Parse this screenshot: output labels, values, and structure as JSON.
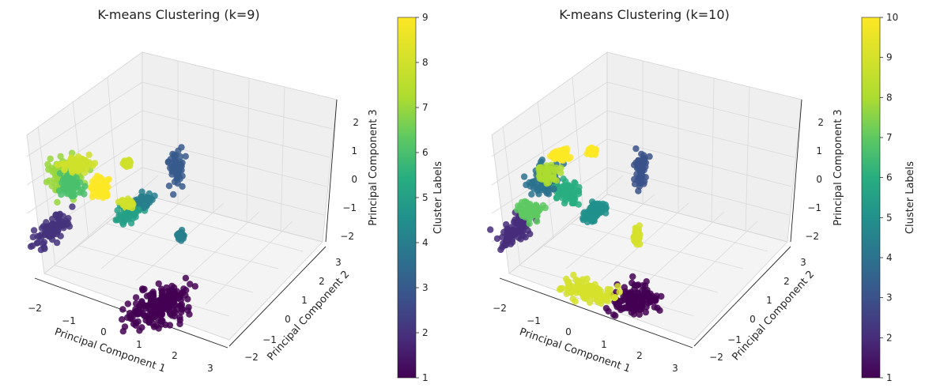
{
  "charts": [
    {
      "title": "K-means Clustering (k=9)",
      "xlabel": "Principal Component 1",
      "ylabel": "Principal Component 2",
      "zlabel": "Principal Component 3",
      "x_ticks": [
        "−2",
        "−1",
        "0",
        "1",
        "2",
        "3"
      ],
      "y_ticks": [
        "−2",
        "−1",
        "0",
        "1",
        "2",
        "3"
      ],
      "z_ticks": [
        "−2",
        "−1",
        "0",
        "1",
        "2"
      ],
      "colorbar": {
        "label": "Cluster Labels",
        "ticks": [
          "1",
          "2",
          "3",
          "4",
          "5",
          "6",
          "7",
          "8",
          "9"
        ]
      }
    },
    {
      "title": "K-means Clustering (k=10)",
      "xlabel": "Principal Component 1",
      "ylabel": "Principal Component 2",
      "zlabel": "Principal Component 3",
      "x_ticks": [
        "−2",
        "−1",
        "0",
        "1",
        "2",
        "3"
      ],
      "y_ticks": [
        "−2",
        "−1",
        "0",
        "1",
        "2",
        "3"
      ],
      "z_ticks": [
        "−2",
        "−1",
        "0",
        "1",
        "2"
      ],
      "colorbar": {
        "label": "Cluster Labels",
        "ticks": [
          "1",
          "2",
          "3",
          "4",
          "5",
          "6",
          "7",
          "8",
          "9",
          "10"
        ]
      }
    }
  ],
  "chart_data": [
    {
      "type": "scatter",
      "projection": "3d",
      "title": "K-means Clustering (k=9)",
      "xlabel": "Principal Component 1",
      "ylabel": "Principal Component 2",
      "zlabel": "Principal Component 3",
      "xlim": [
        -2.2,
        3.2
      ],
      "ylim": [
        -2.2,
        3.2
      ],
      "zlim": [
        -2.2,
        2.6
      ],
      "grid": true,
      "colormap": "viridis",
      "color_range": [
        1,
        9
      ],
      "clusters": [
        {
          "label": 1,
          "center": [
            1.8,
            0.3,
            -2.0
          ],
          "spread": [
            0.55,
            0.8,
            0.12
          ]
        },
        {
          "label": 2,
          "center": [
            -1.4,
            0.4,
            -0.8
          ],
          "spread": [
            0.18,
            0.55,
            0.35
          ]
        },
        {
          "label": 3,
          "center": [
            0.6,
            2.5,
            0.6
          ],
          "spread": [
            0.12,
            0.15,
            0.55
          ]
        },
        {
          "label": 4,
          "center": [
            0.1,
            1.9,
            -0.3
          ],
          "spread": [
            0.15,
            0.2,
            0.15
          ]
        },
        {
          "label": 4,
          "center": [
            1.1,
            2.0,
            -1.1
          ],
          "spread": [
            0.05,
            0.05,
            0.12
          ]
        },
        {
          "label": 5,
          "center": [
            0.0,
            1.5,
            -0.4
          ],
          "spread": [
            0.2,
            0.3,
            0.18
          ]
        },
        {
          "label": 6,
          "center": [
            -1.0,
            0.6,
            0.8
          ],
          "spread": [
            0.25,
            0.2,
            0.25
          ]
        },
        {
          "label": 7,
          "center": [
            -1.5,
            1.0,
            0.6
          ],
          "spread": [
            0.35,
            0.4,
            0.5
          ]
        },
        {
          "label": 8,
          "center": [
            -1.0,
            0.9,
            1.3
          ],
          "spread": [
            0.25,
            0.25,
            0.1
          ]
        },
        {
          "label": 8,
          "center": [
            -0.2,
            1.7,
            1.1
          ],
          "spread": [
            0.08,
            0.08,
            0.05
          ]
        },
        {
          "label": 8,
          "center": [
            0.0,
            1.4,
            0.0
          ],
          "spread": [
            0.15,
            0.1,
            0.1
          ]
        },
        {
          "label": 9,
          "center": [
            -0.6,
            1.2,
            0.4
          ],
          "spread": [
            0.18,
            0.15,
            0.3
          ]
        }
      ]
    },
    {
      "type": "scatter",
      "projection": "3d",
      "title": "K-means Clustering (k=10)",
      "xlabel": "Principal Component 1",
      "ylabel": "Principal Component 2",
      "zlabel": "Principal Component 3",
      "xlim": [
        -2.2,
        3.2
      ],
      "ylim": [
        -2.2,
        3.2
      ],
      "zlim": [
        -2.2,
        2.6
      ],
      "grid": true,
      "colormap": "viridis",
      "color_range": [
        1,
        10
      ],
      "clusters": [
        {
          "label": 1,
          "center": [
            1.8,
            0.6,
            -2.0
          ],
          "spread": [
            0.45,
            0.5,
            0.12
          ]
        },
        {
          "label": 2,
          "center": [
            -1.4,
            0.4,
            -0.8
          ],
          "spread": [
            0.18,
            0.55,
            0.35
          ]
        },
        {
          "label": 3,
          "center": [
            0.6,
            2.5,
            0.6
          ],
          "spread": [
            0.12,
            0.15,
            0.55
          ]
        },
        {
          "label": 4,
          "center": [
            -1.1,
            1.0,
            0.6
          ],
          "spread": [
            0.3,
            0.3,
            0.4
          ]
        },
        {
          "label": 5,
          "center": [
            0.0,
            1.5,
            -0.4
          ],
          "spread": [
            0.2,
            0.3,
            0.18
          ]
        },
        {
          "label": 6,
          "center": [
            -0.5,
            1.2,
            0.3
          ],
          "spread": [
            0.25,
            0.2,
            0.3
          ]
        },
        {
          "label": 7,
          "center": [
            -1.2,
            0.6,
            -0.2
          ],
          "spread": [
            0.25,
            0.25,
            0.2
          ]
        },
        {
          "label": 8,
          "center": [
            -0.9,
            0.9,
            1.0
          ],
          "spread": [
            0.2,
            0.2,
            0.15
          ]
        },
        {
          "label": 9,
          "center": [
            1.2,
            -0.3,
            -1.3
          ],
          "spread": [
            0.6,
            0.3,
            0.15
          ]
        },
        {
          "label": 9,
          "center": [
            1.0,
            1.8,
            -1.0
          ],
          "spread": [
            0.06,
            0.06,
            0.25
          ]
        },
        {
          "label": 10,
          "center": [
            -0.8,
            1.3,
            1.4
          ],
          "spread": [
            0.15,
            0.2,
            0.08
          ]
        },
        {
          "label": 10,
          "center": [
            -0.3,
            1.8,
            1.4
          ],
          "spread": [
            0.08,
            0.08,
            0.06
          ]
        }
      ]
    }
  ]
}
